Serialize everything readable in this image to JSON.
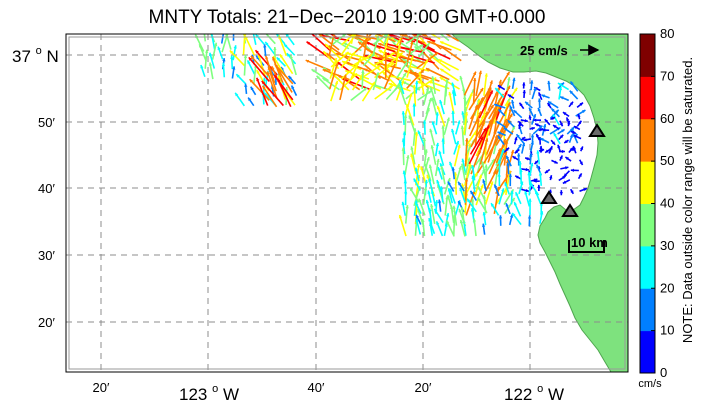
{
  "title": "MNTY Totals: 21−Dec−2010 19:00 GMT+0.000",
  "axes": {
    "y_ticks": [
      {
        "label": "37",
        "unit": "o",
        "hemi": "N",
        "major": true,
        "minutes": 0
      },
      {
        "label": "50′",
        "major": false,
        "minutes": 50
      },
      {
        "label": "40′",
        "major": false,
        "minutes": 40
      },
      {
        "label": "30′",
        "major": false,
        "minutes": 30
      },
      {
        "label": "20′",
        "major": false,
        "minutes": 20
      }
    ],
    "x_ticks": [
      {
        "label": "20′",
        "major": false
      },
      {
        "label": "123",
        "unit": "o",
        "hemi": "W",
        "major": true
      },
      {
        "label": "40′",
        "major": false
      },
      {
        "label": "20′",
        "major": false
      },
      {
        "label": "122",
        "unit": "o",
        "hemi": "W",
        "major": true
      }
    ]
  },
  "scale_vector": {
    "label": "25 cm/s"
  },
  "scale_bar": {
    "label": "10 km"
  },
  "colorbar": {
    "ticks": [
      "80",
      "70",
      "60",
      "50",
      "40",
      "30",
      "20",
      "10",
      "0"
    ],
    "colors": [
      "#0000ff",
      "#007fff",
      "#00ffff",
      "#7fff7f",
      "#ffff00",
      "#ff7f00",
      "#ff0000",
      "#7f0000"
    ],
    "unit": "cm/s",
    "note": "NOTE: Data outside color range will be saturated."
  },
  "stations": [
    {
      "name": "station-1",
      "lon": -121.86,
      "lat": 36.82
    },
    {
      "name": "station-2",
      "lon": -121.81,
      "lat": 36.63
    },
    {
      "name": "station-3",
      "lon": -121.93,
      "lat": 36.66
    }
  ],
  "colors": {
    "land": "#7ee27e",
    "coast": "#5cbf5c",
    "grid": "#8c8c8c"
  }
}
